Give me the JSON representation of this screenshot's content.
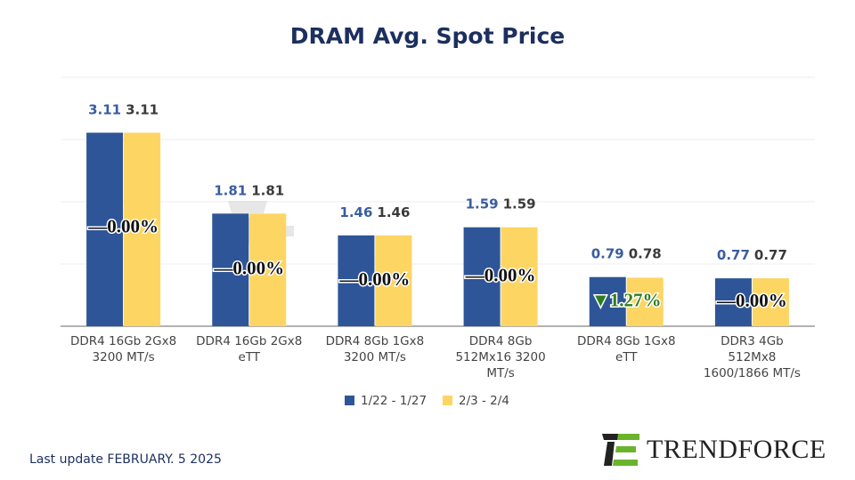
{
  "chart_data": {
    "type": "bar",
    "title": "DRAM Avg. Spot Price",
    "categories": [
      [
        "DDR4 16Gb 2Gx8",
        "3200 MT/s"
      ],
      [
        "DDR4 16Gb 2Gx8",
        "eTT"
      ],
      [
        "DDR4 8Gb 1Gx8",
        "3200 MT/s"
      ],
      [
        "DDR4 8Gb",
        "512Mx16 3200",
        "MT/s"
      ],
      [
        "DDR4 8Gb 1Gx8",
        "eTT"
      ],
      [
        "DDR3 4Gb",
        "512Mx8",
        "1600/1866  MT/s"
      ]
    ],
    "series": [
      {
        "name": "1/22 - 1/27",
        "color": "#2e5597",
        "label_color": "#3a5da0",
        "values": [
          3.11,
          1.81,
          1.46,
          1.59,
          0.79,
          0.77
        ]
      },
      {
        "name": "2/3 - 2/4",
        "color": "#fdd563",
        "label_color": "#3a3a3a",
        "values": [
          3.11,
          1.81,
          1.46,
          1.59,
          0.78,
          0.77
        ]
      }
    ],
    "changes": [
      "—0.00%",
      "—0.00%",
      "—0.00%",
      "—0.00%",
      "▼1.27%",
      "—0.00%"
    ],
    "change_colors": [
      "#111111",
      "#111111",
      "#111111",
      "#111111",
      "#2e7d1e",
      "#111111"
    ],
    "ylim": [
      0,
      4
    ],
    "grid": true,
    "legend_position": "bottom"
  },
  "watermark": "TRENDFORCE",
  "footer": "Last update FEBRUARY. 5  2025",
  "logo_text": "TRENDFORCE"
}
